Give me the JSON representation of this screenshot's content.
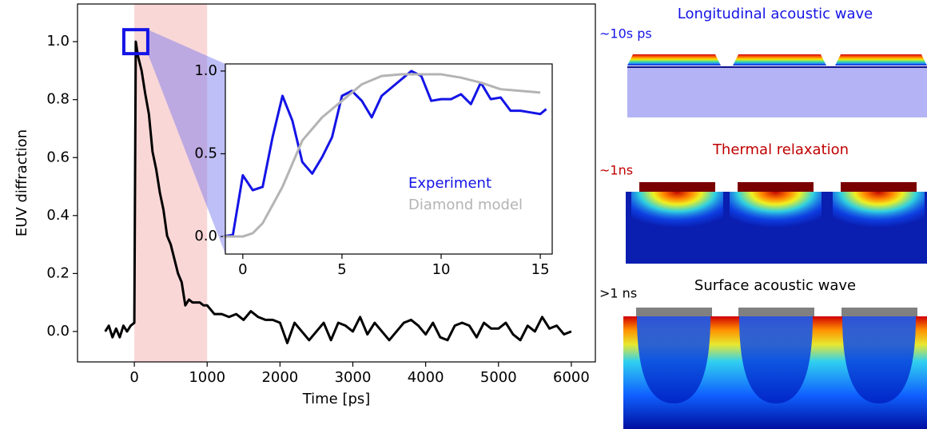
{
  "chart_data": [
    {
      "type": "line",
      "xlabel": "Time [ps]",
      "ylabel": "EUV diffraction",
      "xlim": [
        -780,
        6330
      ],
      "ylim": [
        -0.105,
        1.13
      ],
      "xticks": [
        0,
        1000,
        2000,
        3000,
        4000,
        5000,
        6000
      ],
      "yticks": [
        {
          "value": 0,
          "label": "0.0"
        },
        {
          "value": 0.2,
          "label": "0.2"
        },
        {
          "value": 0.4,
          "label": "0.4"
        },
        {
          "value": 0.6,
          "label": "0.6"
        },
        {
          "value": 0.8,
          "label": "0.8"
        },
        {
          "value": 1,
          "label": "1.0"
        }
      ],
      "span_x": [
        0,
        1000
      ],
      "span_color": "#f9d0d0",
      "series": [
        {
          "color": "#000000",
          "x": [
            -400,
            -350,
            -300,
            -250,
            -200,
            -150,
            -100,
            -50,
            0,
            20,
            50,
            100,
            150,
            200,
            250,
            300,
            350,
            400,
            450,
            500,
            550,
            600,
            650,
            700,
            750,
            800,
            850,
            900,
            950,
            1000,
            1100,
            1200,
            1300,
            1400,
            1500,
            1600,
            1700,
            1800,
            1900,
            2000,
            2100,
            2200,
            2300,
            2400,
            2500,
            2600,
            2700,
            2800,
            2900,
            3000,
            3100,
            3200,
            3300,
            3400,
            3500,
            3600,
            3700,
            3800,
            3900,
            4000,
            4100,
            4200,
            4300,
            4400,
            4500,
            4600,
            4700,
            4800,
            4900,
            5000,
            5100,
            5200,
            5300,
            5400,
            5500,
            5600,
            5700,
            5800,
            5900,
            6000
          ],
          "values": [
            0.0,
            0.02,
            -0.02,
            0.01,
            -0.02,
            0.02,
            0.0,
            0.02,
            0.03,
            1.0,
            0.95,
            0.9,
            0.82,
            0.75,
            0.62,
            0.56,
            0.48,
            0.42,
            0.33,
            0.3,
            0.25,
            0.2,
            0.17,
            0.09,
            0.11,
            0.1,
            0.1,
            0.1,
            0.09,
            0.09,
            0.06,
            0.06,
            0.05,
            0.06,
            0.04,
            0.07,
            0.05,
            0.04,
            0.04,
            0.03,
            -0.04,
            0.03,
            0.0,
            -0.03,
            0.0,
            0.03,
            -0.03,
            0.03,
            0.02,
            0.0,
            0.05,
            -0.01,
            0.03,
            0.0,
            -0.03,
            0.0,
            0.03,
            0.04,
            0.02,
            -0.01,
            0.03,
            -0.02,
            -0.03,
            0.02,
            0.03,
            0.02,
            -0.02,
            0.03,
            0.01,
            0.01,
            0.03,
            -0.01,
            -0.03,
            0.02,
            0.0,
            0.05,
            0.01,
            0.02,
            -0.01,
            0.0
          ]
        }
      ]
    },
    {
      "type": "line",
      "xlim": [
        -0.88,
        15.6
      ],
      "ylim": [
        -0.106,
        1.043
      ],
      "xticks": [
        0,
        5,
        10,
        15
      ],
      "yticks": [
        {
          "value": 0,
          "label": "0.0"
        },
        {
          "value": 0.5,
          "label": "0.5"
        },
        {
          "value": 1,
          "label": "1.0"
        }
      ],
      "legend": "lower right",
      "series": [
        {
          "name": "Experiment",
          "color": "#1414e6",
          "x": [
            -1,
            -0.5,
            0,
            0.5,
            1,
            1.5,
            2,
            2.5,
            3,
            3.5,
            4,
            4.5,
            5,
            5.5,
            6,
            6.5,
            7,
            7.5,
            8,
            8.5,
            9,
            9.5,
            10,
            10.5,
            11,
            11.5,
            12,
            12.5,
            13,
            13.5,
            14,
            14.5,
            15,
            15.3
          ],
          "values": [
            0.0,
            0.01,
            0.37,
            0.28,
            0.3,
            0.6,
            0.85,
            0.7,
            0.45,
            0.38,
            0.48,
            0.6,
            0.85,
            0.88,
            0.82,
            0.72,
            0.85,
            0.9,
            0.95,
            1.0,
            0.97,
            0.82,
            0.83,
            0.83,
            0.86,
            0.8,
            0.93,
            0.83,
            0.84,
            0.76,
            0.76,
            0.75,
            0.74,
            0.77
          ]
        },
        {
          "name": "Diamond model",
          "color": "#b4b4b4",
          "x": [
            -1,
            0,
            0.5,
            1,
            2,
            3,
            4,
            5,
            6,
            7,
            8,
            9,
            10,
            11,
            12,
            13,
            14,
            15
          ],
          "values": [
            0,
            0,
            0.02,
            0.08,
            0.3,
            0.58,
            0.72,
            0.82,
            0.92,
            0.97,
            0.98,
            0.98,
            0.98,
            0.96,
            0.93,
            0.89,
            0.88,
            0.87
          ]
        }
      ]
    }
  ],
  "panels": [
    {
      "title": "Longitudinal acoustic wave",
      "time": "~10s ps"
    },
    {
      "title": "Thermal relaxation",
      "time": "~1ns"
    },
    {
      "title": "Surface acoustic wave",
      "time": ">1 ns"
    }
  ]
}
